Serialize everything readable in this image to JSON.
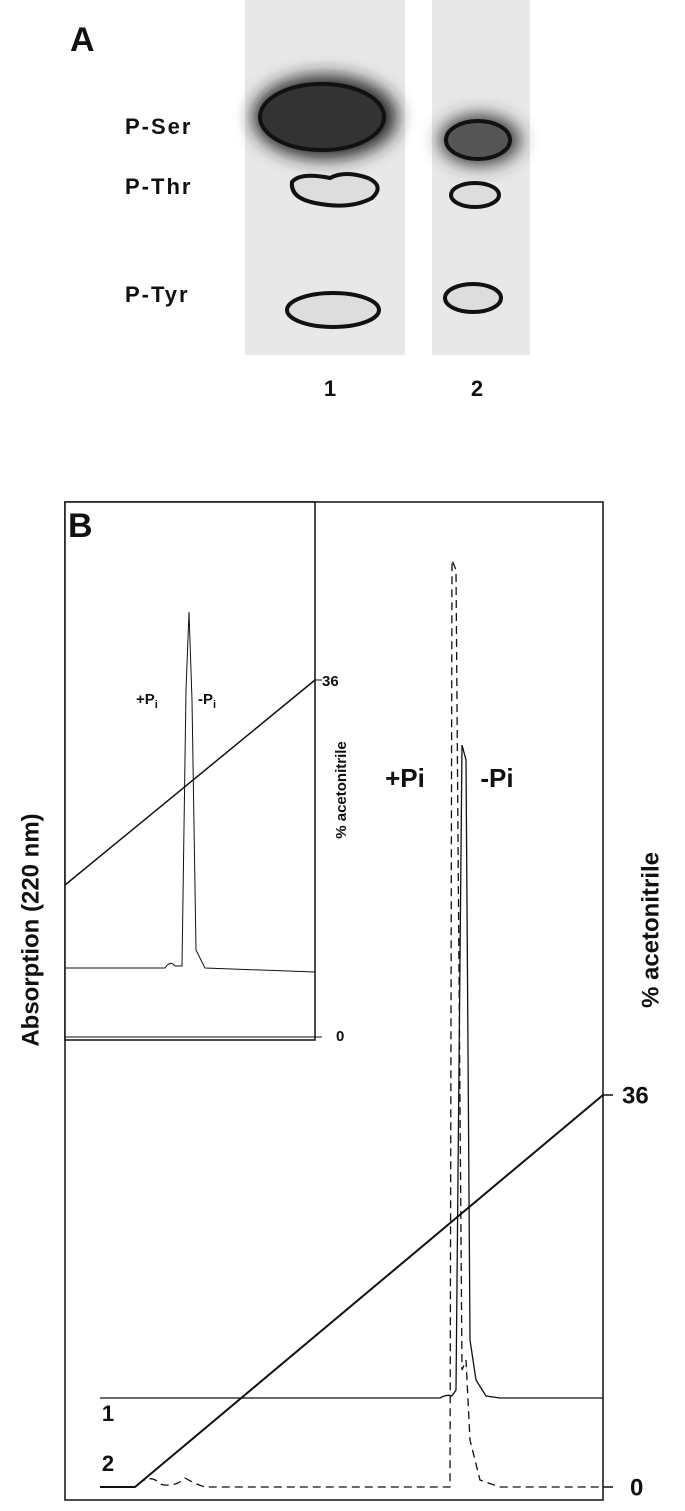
{
  "panel_a": {
    "label": "A",
    "spots": [
      "P-Ser",
      "P-Thr",
      "P-Tyr"
    ],
    "lanes": [
      "1",
      "2"
    ]
  },
  "panel_b": {
    "label": "B",
    "y_axis_label": "Absorption (220 nm)",
    "gradient_axis": {
      "label": "% acetonitrile",
      "ticks": [
        "36",
        "0"
      ]
    },
    "peak_labels": [
      "+Pi",
      "-Pi"
    ],
    "trace_labels": [
      "1",
      "2"
    ],
    "inset": {
      "gradient_axis": {
        "label": "% acetonitrile",
        "ticks": [
          "36",
          "0"
        ]
      },
      "peak_labels": [
        {
          "text": "+P",
          "subscript": "i"
        },
        {
          "text": "-P",
          "subscript": "i"
        }
      ]
    }
  }
}
